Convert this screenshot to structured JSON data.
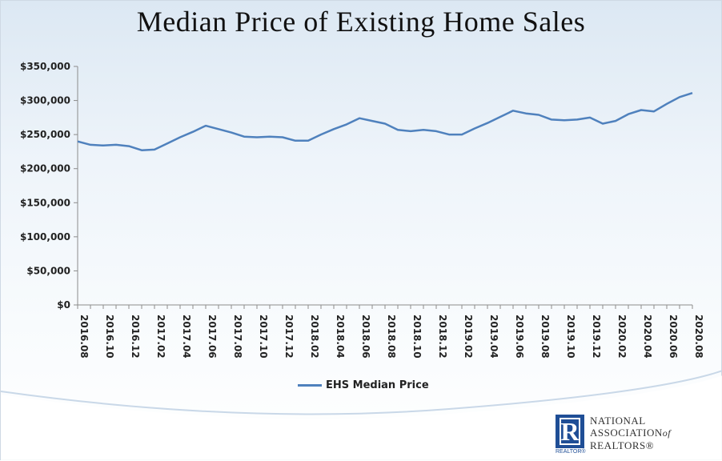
{
  "title": "Median Price of Existing Home Sales",
  "colors": {
    "series": "#4f81bd",
    "brand": "#1f4e96"
  },
  "chart_data": {
    "type": "line",
    "title": "Median Price of Existing Home Sales",
    "xlabel": "",
    "ylabel": "",
    "ylim": [
      0,
      350000
    ],
    "y_ticks": [
      "$0",
      "$50,000",
      "$100,000",
      "$150,000",
      "$200,000",
      "$250,000",
      "$300,000",
      "$350,000"
    ],
    "x_tick_labels": [
      "2016.08",
      "2016.10",
      "2016.12",
      "2017.02",
      "2017.04",
      "2017.06",
      "2017.08",
      "2017.10",
      "2017.12",
      "2018.02",
      "2018.04",
      "2018.06",
      "2018.08",
      "2018.10",
      "2018.12",
      "2019.02",
      "2019.04",
      "2019.06",
      "2019.08",
      "2019.10",
      "2019.12",
      "2020.02",
      "2020.04",
      "2020.06",
      "2020.08"
    ],
    "x": [
      "2016.08",
      "2016.09",
      "2016.10",
      "2016.11",
      "2016.12",
      "2017.01",
      "2017.02",
      "2017.03",
      "2017.04",
      "2017.05",
      "2017.06",
      "2017.07",
      "2017.08",
      "2017.09",
      "2017.10",
      "2017.11",
      "2017.12",
      "2018.01",
      "2018.02",
      "2018.03",
      "2018.04",
      "2018.05",
      "2018.06",
      "2018.07",
      "2018.08",
      "2018.09",
      "2018.10",
      "2018.11",
      "2018.12",
      "2019.01",
      "2019.02",
      "2019.03",
      "2019.04",
      "2019.05",
      "2019.06",
      "2019.07",
      "2019.08",
      "2019.09",
      "2019.10",
      "2019.11",
      "2019.12",
      "2020.01",
      "2020.02",
      "2020.03",
      "2020.04",
      "2020.05",
      "2020.06",
      "2020.07",
      "2020.08"
    ],
    "series": [
      {
        "name": "EHS Median Price",
        "values": [
          240000,
          235000,
          234000,
          235000,
          233000,
          227000,
          228000,
          237000,
          246000,
          254000,
          263000,
          258000,
          253000,
          247000,
          246000,
          247000,
          246000,
          241000,
          241000,
          250000,
          258000,
          265000,
          274000,
          270000,
          266000,
          257000,
          255000,
          257000,
          255000,
          250000,
          250000,
          259000,
          267000,
          276000,
          285000,
          281000,
          279000,
          272000,
          271000,
          272000,
          275000,
          266000,
          270000,
          280000,
          286000,
          284000,
          295000,
          305000,
          311000
        ]
      }
    ],
    "grid": false,
    "legend_position": "bottom"
  },
  "legend": {
    "label": "EHS Median Price"
  },
  "logo": {
    "line1": "NATIONAL",
    "line2": "ASSOCIATION",
    "line2_suffix": "of",
    "line3": "REALTORS®",
    "mark": "R",
    "mark_sub": "REALTOR®"
  }
}
